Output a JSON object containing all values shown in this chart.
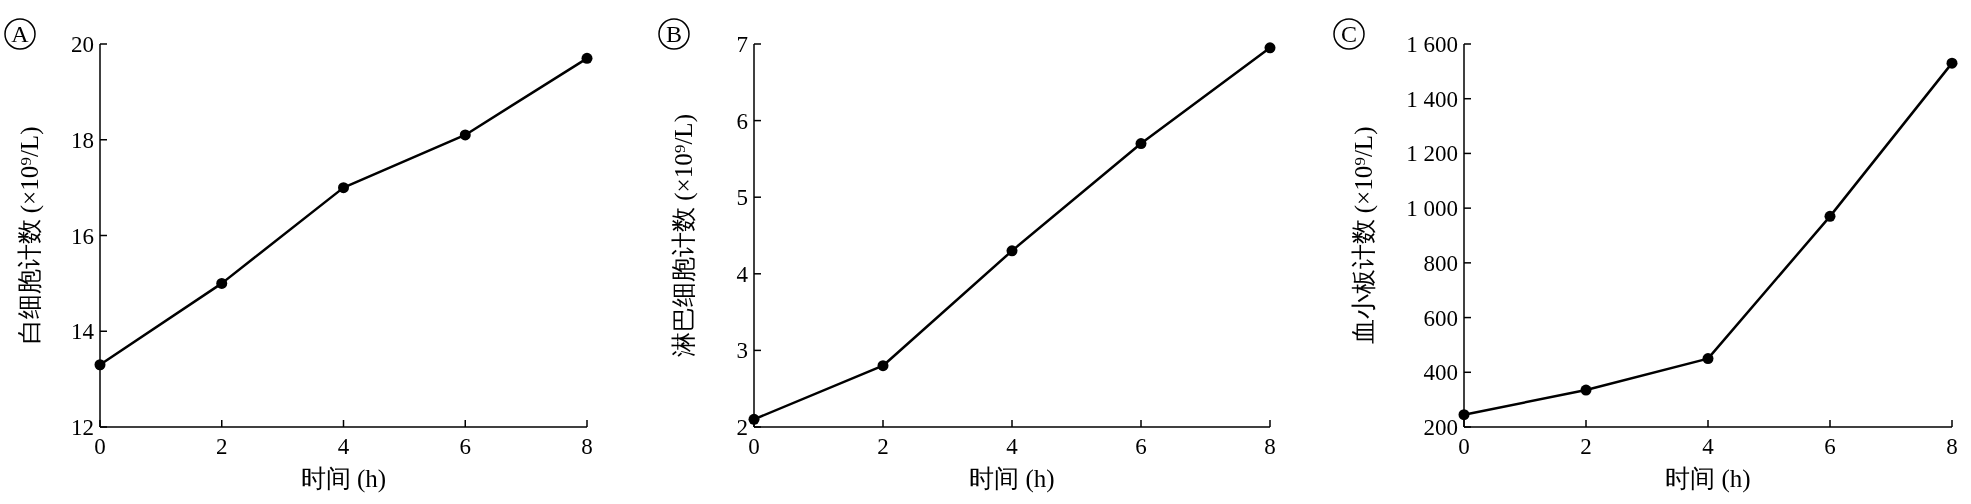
{
  "chart_data": [
    {
      "type": "line",
      "title": "A",
      "xlabel": "时间 (h)",
      "ylabel": "白细胞计数 (×10⁹/L)",
      "x": [
        0,
        2,
        4,
        6,
        8
      ],
      "xlim": [
        0,
        8
      ],
      "xticks": [
        0,
        2,
        4,
        6,
        8
      ],
      "ylim": [
        12,
        20
      ],
      "yticks": [
        12,
        14,
        16,
        18,
        20
      ],
      "marker": "circle",
      "grid": false,
      "series": [
        {
          "color": "#000000",
          "values": [
            13.3,
            15.0,
            17.0,
            18.1,
            19.7
          ]
        }
      ]
    },
    {
      "type": "line",
      "title": "B",
      "xlabel": "时间 (h)",
      "ylabel": "淋巴细胞计数 (×10⁹/L)",
      "x": [
        0,
        2,
        4,
        6,
        8
      ],
      "xlim": [
        0,
        8
      ],
      "xticks": [
        0,
        2,
        4,
        6,
        8
      ],
      "ylim": [
        2,
        7
      ],
      "yticks": [
        2,
        3,
        4,
        5,
        6,
        7
      ],
      "marker": "circle",
      "grid": false,
      "series": [
        {
          "color": "#000000",
          "values": [
            2.1,
            2.8,
            4.3,
            5.7,
            6.95
          ]
        }
      ]
    },
    {
      "type": "line",
      "title": "C",
      "xlabel": "时间 (h)",
      "ylabel": "血小板计数 (×10⁹/L)",
      "x": [
        0,
        2,
        4,
        6,
        8
      ],
      "xlim": [
        0,
        8
      ],
      "xticks": [
        0,
        2,
        4,
        6,
        8
      ],
      "ylim": [
        200,
        1600
      ],
      "yticks": [
        200,
        400,
        600,
        800,
        {
          "value": 1000,
          "label": "1 000"
        },
        {
          "value": 1200,
          "label": "1 200"
        },
        {
          "value": 1400,
          "label": "1 400"
        },
        {
          "value": 1600,
          "label": "1 600"
        }
      ],
      "marker": "circle",
      "grid": false,
      "series": [
        {
          "color": "#000000",
          "values": [
            245,
            335,
            450,
            970,
            1530
          ]
        }
      ]
    }
  ]
}
